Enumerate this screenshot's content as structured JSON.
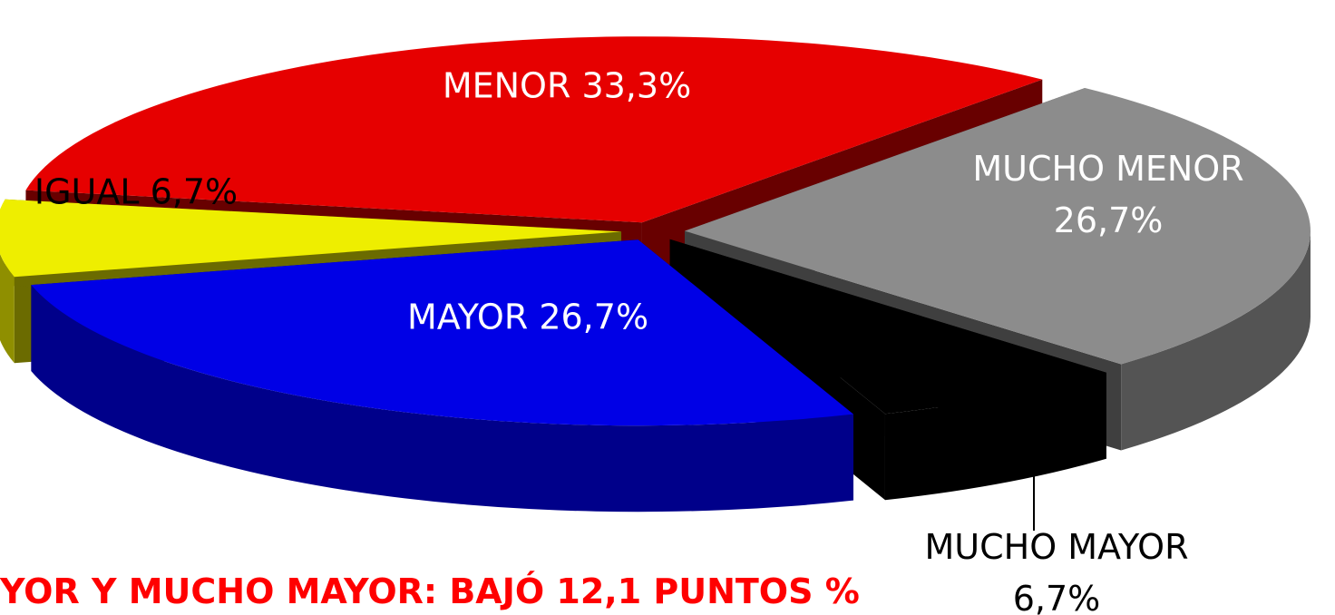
{
  "chart_data": {
    "type": "pie3d",
    "categories": [
      "MENOR",
      "MUCHO MENOR",
      "MUCHO MAYOR",
      "MAYOR",
      "IGUAL"
    ],
    "values": [
      33.3,
      26.7,
      6.7,
      26.7,
      6.7
    ],
    "value_labels": [
      "33,3%",
      "26,7%",
      "6,7%",
      "26,7%",
      "6,7%"
    ],
    "colors": [
      "#e60000",
      "#8c8c8c",
      "#000000",
      "#0000e6",
      "#eeee00"
    ],
    "annotation": "YOR Y MUCHO MAYOR: BAJÓ  12,1 PUNTOS %"
  }
}
